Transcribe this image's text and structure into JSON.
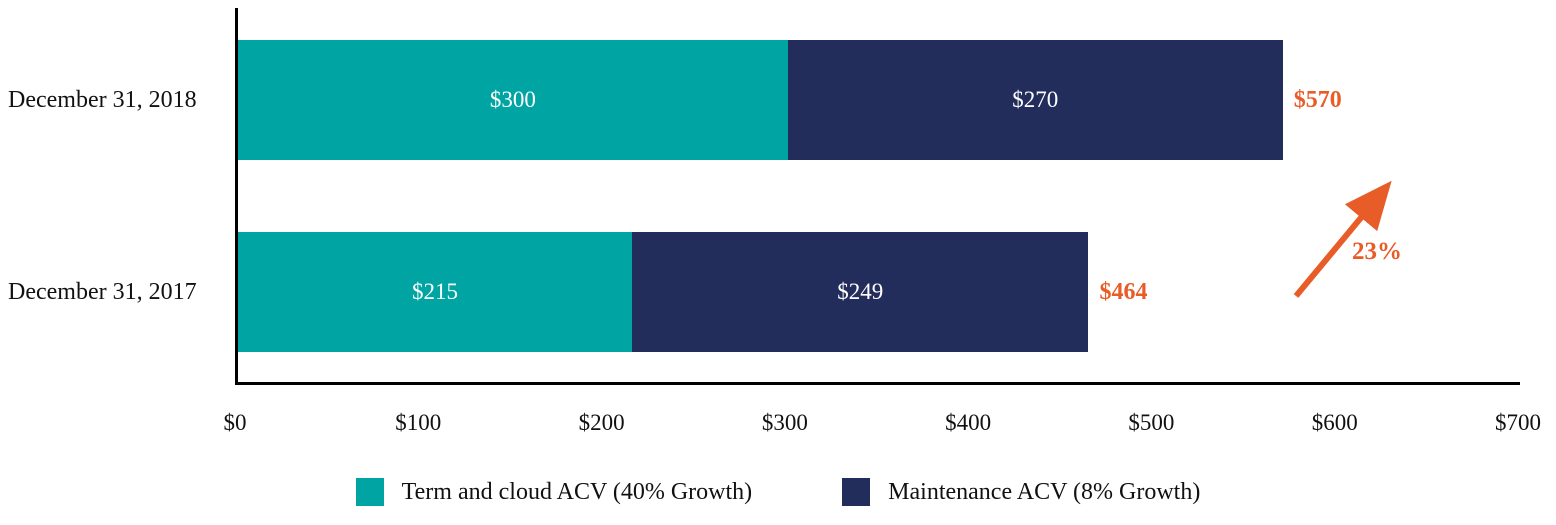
{
  "chart_data": {
    "type": "bar",
    "orientation": "horizontal",
    "stacked": true,
    "grid": false,
    "legend_position": "bottom",
    "categories": [
      "December 31, 2018",
      "December 31, 2017"
    ],
    "series": [
      {
        "name": "Term and cloud ACV (40% Growth)",
        "color": "#00A5A3",
        "values": [
          300,
          215
        ],
        "labels": [
          "$300",
          "$215"
        ]
      },
      {
        "name": "Maintenance ACV (8% Growth)",
        "color": "#232D5C",
        "values": [
          270,
          249
        ],
        "labels": [
          "$270",
          "$249"
        ]
      }
    ],
    "totals": [
      "$570",
      "$464"
    ],
    "totals_color": "#E85C28",
    "xlim": [
      0,
      700
    ],
    "x_ticks": [
      "$0",
      "$100",
      "$200",
      "$300",
      "$400",
      "$500",
      "$600",
      "$700"
    ],
    "annotation": {
      "text": "23%",
      "color": "#E85C28"
    }
  }
}
